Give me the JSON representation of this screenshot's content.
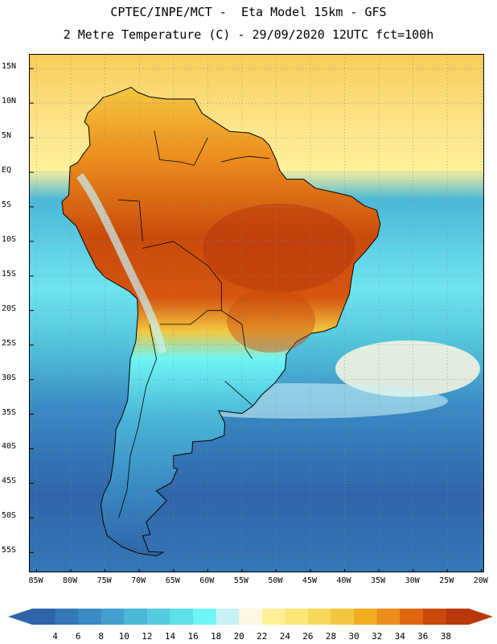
{
  "title": {
    "line1": "CPTEC/INPE/MCT -  Eta Model 15km - GFS",
    "line2": "2 Metre Temperature (C) - 29/09/2020 12UTC fct=100h"
  },
  "map": {
    "lon_range": [
      -86,
      -19.5
    ],
    "lat_range": [
      17,
      -58
    ],
    "lat_ticks": [
      {
        "value": 15,
        "label": "15N"
      },
      {
        "value": 10,
        "label": "10N"
      },
      {
        "value": 5,
        "label": "5N"
      },
      {
        "value": 0,
        "label": "EQ"
      },
      {
        "value": -5,
        "label": "5S"
      },
      {
        "value": -10,
        "label": "10S"
      },
      {
        "value": -15,
        "label": "15S"
      },
      {
        "value": -20,
        "label": "20S"
      },
      {
        "value": -25,
        "label": "25S"
      },
      {
        "value": -30,
        "label": "30S"
      },
      {
        "value": -35,
        "label": "35S"
      },
      {
        "value": -40,
        "label": "40S"
      },
      {
        "value": -45,
        "label": "45S"
      },
      {
        "value": -50,
        "label": "50S"
      },
      {
        "value": -55,
        "label": "55S"
      }
    ],
    "lon_ticks": [
      {
        "value": -85,
        "label": "85W"
      },
      {
        "value": -80,
        "label": "80W"
      },
      {
        "value": -75,
        "label": "75W"
      },
      {
        "value": -70,
        "label": "70W"
      },
      {
        "value": -65,
        "label": "65W"
      },
      {
        "value": -60,
        "label": "60W"
      },
      {
        "value": -55,
        "label": "55W"
      },
      {
        "value": -50,
        "label": "50W"
      },
      {
        "value": -45,
        "label": "45W"
      },
      {
        "value": -40,
        "label": "40W"
      },
      {
        "value": -35,
        "label": "35W"
      },
      {
        "value": -30,
        "label": "30W"
      },
      {
        "value": -25,
        "label": "25W"
      },
      {
        "value": -20,
        "label": "20W"
      }
    ],
    "continent_outline_lonlat": [
      [
        -77.5,
        8.6
      ],
      [
        -76.5,
        9.5
      ],
      [
        -75.3,
        10.8
      ],
      [
        -74,
        11.2
      ],
      [
        -72.2,
        11.9
      ],
      [
        -71.2,
        12.3
      ],
      [
        -70.3,
        11.6
      ],
      [
        -68.5,
        10.9
      ],
      [
        -66,
        10.6
      ],
      [
        -63.5,
        10.6
      ],
      [
        -62,
        10.6
      ],
      [
        -60.8,
        8.5
      ],
      [
        -58.5,
        7
      ],
      [
        -56.8,
        5.9
      ],
      [
        -54,
        5.7
      ],
      [
        -52,
        4.9
      ],
      [
        -51,
        3.9
      ],
      [
        -50,
        1.8
      ],
      [
        -49.5,
        0.3
      ],
      [
        -48.5,
        -1
      ],
      [
        -46,
        -1
      ],
      [
        -44.3,
        -2.3
      ],
      [
        -41.5,
        -2.9
      ],
      [
        -39,
        -3.5
      ],
      [
        -37.2,
        -4.8
      ],
      [
        -35.3,
        -5.5
      ],
      [
        -34.8,
        -7.5
      ],
      [
        -35.2,
        -9.3
      ],
      [
        -37,
        -11.5
      ],
      [
        -38.6,
        -13.2
      ],
      [
        -39,
        -15.5
      ],
      [
        -39.3,
        -17.6
      ],
      [
        -40.5,
        -20.5
      ],
      [
        -41.2,
        -22.3
      ],
      [
        -43,
        -23
      ],
      [
        -44.8,
        -23.3
      ],
      [
        -47,
        -24.5
      ],
      [
        -48.5,
        -26.3
      ],
      [
        -48.7,
        -28.5
      ],
      [
        -50.2,
        -30.5
      ],
      [
        -52.1,
        -32.2
      ],
      [
        -53.4,
        -33.8
      ],
      [
        -55,
        -34.9
      ],
      [
        -56.8,
        -34.7
      ],
      [
        -58.4,
        -34.5
      ],
      [
        -57.5,
        -36.3
      ],
      [
        -57.6,
        -38.1
      ],
      [
        -59.5,
        -38.8
      ],
      [
        -62.2,
        -39
      ],
      [
        -62.3,
        -40.6
      ],
      [
        -65,
        -41
      ],
      [
        -65,
        -42.8
      ],
      [
        -64.4,
        -42.9
      ],
      [
        -65.3,
        -44.9
      ],
      [
        -67.5,
        -46.1
      ],
      [
        -66,
        -47.5
      ],
      [
        -67.6,
        -49.2
      ],
      [
        -69,
        -50.6
      ],
      [
        -68.4,
        -52.4
      ],
      [
        -69.5,
        -52.6
      ],
      [
        -68.6,
        -54.9
      ],
      [
        -66.5,
        -55
      ],
      [
        -67.5,
        -55.5
      ],
      [
        -70.2,
        -55.1
      ],
      [
        -72.5,
        -54.2
      ],
      [
        -74.7,
        -52.6
      ],
      [
        -75.3,
        -50.5
      ],
      [
        -75.6,
        -48
      ],
      [
        -75.2,
        -46.5
      ],
      [
        -74.2,
        -44.5
      ],
      [
        -73.8,
        -42
      ],
      [
        -73.6,
        -40
      ],
      [
        -73.4,
        -37.2
      ],
      [
        -72.6,
        -35.5
      ],
      [
        -71.7,
        -33
      ],
      [
        -71.5,
        -30
      ],
      [
        -71.3,
        -27
      ],
      [
        -70.5,
        -24.5
      ],
      [
        -70.2,
        -20.5
      ],
      [
        -70.3,
        -18.3
      ],
      [
        -71.5,
        -17.2
      ],
      [
        -75,
        -15.2
      ],
      [
        -76.3,
        -13.8
      ],
      [
        -77.7,
        -11
      ],
      [
        -79.2,
        -7.8
      ],
      [
        -81.1,
        -6
      ],
      [
        -81.3,
        -4.3
      ],
      [
        -80.3,
        -3.3
      ],
      [
        -80.2,
        -1
      ],
      [
        -80.1,
        0.8
      ],
      [
        -79,
        1.4
      ],
      [
        -78.2,
        2.6
      ],
      [
        -77.2,
        3.9
      ],
      [
        -77.4,
        6.6
      ],
      [
        -78,
        7.3
      ],
      [
        -77.5,
        8.6
      ]
    ]
  },
  "colorbar": {
    "values": [
      "4",
      "6",
      "8",
      "10",
      "12",
      "14",
      "16",
      "18",
      "20",
      "22",
      "24",
      "26",
      "28",
      "30",
      "32",
      "34",
      "36",
      "38"
    ],
    "colors": [
      "#2f65a8",
      "#3578b6",
      "#3a8ac3",
      "#42a0cf",
      "#4bb8d8",
      "#55cce0",
      "#5de0e6",
      "#6ff5f5",
      "#c8f2f6",
      "#fdf7e3",
      "#fff19a",
      "#fde777",
      "#f8d85a",
      "#f3c740",
      "#f1ad20",
      "#ec8e1d",
      "#df6712",
      "#ca4a0c",
      "#b8380c"
    ]
  }
}
